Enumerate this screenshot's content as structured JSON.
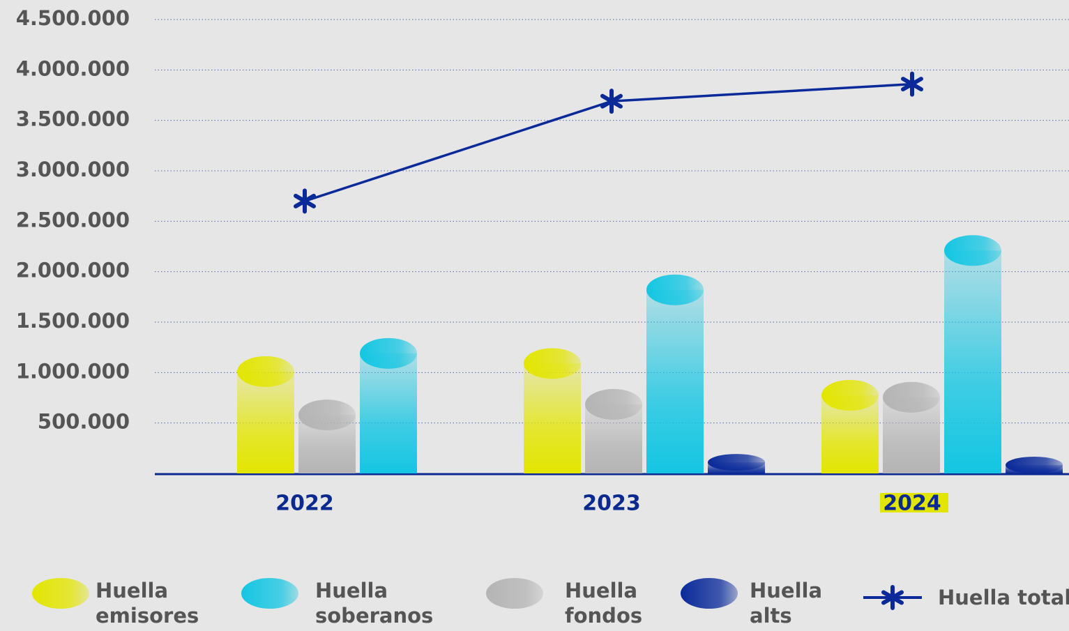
{
  "chart_data": {
    "type": "bar",
    "categories": [
      "2022",
      "2023",
      "2024"
    ],
    "ylim": [
      0,
      4500000
    ],
    "yticks": [
      {
        "value": 500000,
        "label": "500.000"
      },
      {
        "value": 1000000,
        "label": "1.000.000"
      },
      {
        "value": 1500000,
        "label": "1.500.000"
      },
      {
        "value": 2000000,
        "label": "2.000.000"
      },
      {
        "value": 2500000,
        "label": "2.500.000"
      },
      {
        "value": 3000000,
        "label": "3.000.000"
      },
      {
        "value": 3500000,
        "label": "3.500.000"
      },
      {
        "value": 4000000,
        "label": "4.000.000"
      },
      {
        "value": 4500000,
        "label": "4.500.000"
      }
    ],
    "grid": true,
    "series": [
      {
        "name": "Huella emisores",
        "color": "#e3e600",
        "values": [
          1010000,
          1090000,
          775000
        ]
      },
      {
        "name": "Huella fondos",
        "color": "#b4b4b4",
        "values": [
          580000,
          685000,
          755000
        ]
      },
      {
        "name": "Huella soberanos",
        "color": "#14c6e3",
        "values": [
          1190000,
          1820000,
          2210000
        ]
      },
      {
        "name": "Huella alts",
        "color": "#0a2a9a",
        "values": [
          null,
          110000,
          83000
        ]
      },
      {
        "name": "Huella total",
        "color": "#0a2a9a",
        "type": "line",
        "values": [
          2700000,
          3690000,
          3860000
        ]
      }
    ]
  }
}
